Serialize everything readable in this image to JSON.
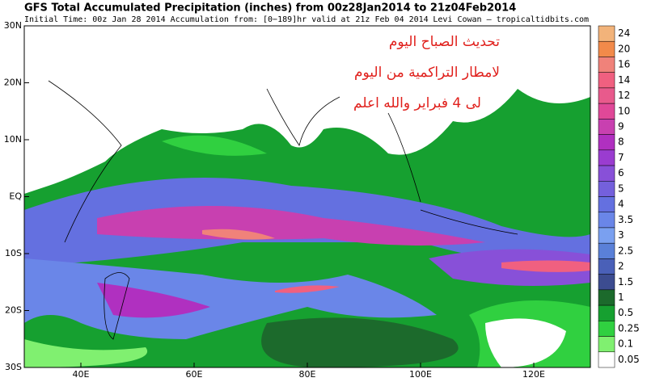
{
  "header": {
    "title": "GFS Total Accumulated Precipitation (inches) from 00z28Jan2014 to 21z04Feb2014",
    "subtitle": "Initial Time: 00z Jan 28 2014 Accumulation from: [0−189]hr valid at 21z Feb 04 2014",
    "credit": "Levi Cowan – tropicaltidbits.com"
  },
  "annotation": {
    "lines": [
      "تحديث الصباح اليوم",
      "لامطار التراكمية من اليوم",
      "لى 4 فبراير والله اعلم"
    ]
  },
  "map": {
    "lat_labels": [
      "30N",
      "20N",
      "10N",
      "EQ",
      "10S",
      "20S",
      "30S"
    ],
    "lon_labels": [
      "40E",
      "60E",
      "80E",
      "100E",
      "120E"
    ]
  },
  "colorbar": {
    "entries": [
      {
        "label": "24",
        "color": "#f2b37a"
      },
      {
        "label": "20",
        "color": "#f28a4a"
      },
      {
        "label": "16",
        "color": "#f0827a"
      },
      {
        "label": "14",
        "color": "#f06080"
      },
      {
        "label": "12",
        "color": "#e85a8c"
      },
      {
        "label": "10",
        "color": "#e04898"
      },
      {
        "label": "9",
        "color": "#c840b0"
      },
      {
        "label": "8",
        "color": "#b030c0"
      },
      {
        "label": "7",
        "color": "#9a3cd0"
      },
      {
        "label": "6",
        "color": "#8850d8"
      },
      {
        "label": "5",
        "color": "#7460dc"
      },
      {
        "label": "4",
        "color": "#6470e0"
      },
      {
        "label": "3.5",
        "color": "#6a86e8"
      },
      {
        "label": "3",
        "color": "#7aa0f0"
      },
      {
        "label": "2.5",
        "color": "#5a80d8"
      },
      {
        "label": "2",
        "color": "#4a60b8"
      },
      {
        "label": "1.5",
        "color": "#3c4c90"
      },
      {
        "label": "1",
        "color": "#1c6a2c"
      },
      {
        "label": "0.5",
        "color": "#16a030"
      },
      {
        "label": "0.25",
        "color": "#30d040"
      },
      {
        "label": "0.1",
        "color": "#80f070"
      },
      {
        "label": "0.05",
        "color": "#ffffff"
      }
    ]
  }
}
